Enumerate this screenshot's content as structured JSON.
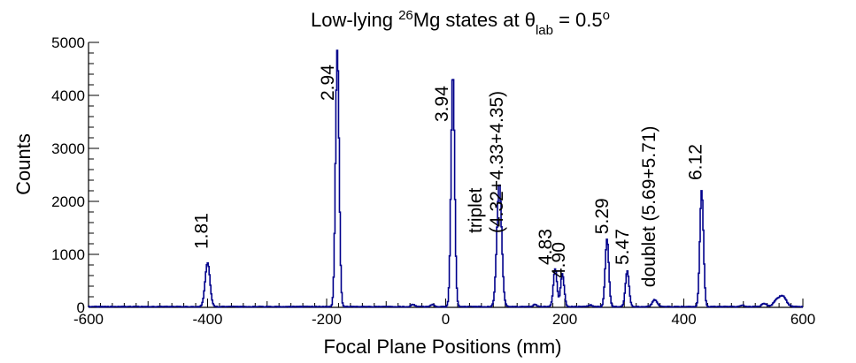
{
  "chart_data": {
    "type": "line",
    "title": {
      "prefix": "Low-lying ",
      "superscript": "26",
      "nucleus": "Mg states at θ",
      "subscript": "lab",
      "equals": " = 0.5",
      "degree": "o"
    },
    "xlabel": "Focal Plane Positions (mm)",
    "ylabel": "Counts",
    "xlim": [
      -600,
      600
    ],
    "ylim": [
      0,
      5000
    ],
    "xticks": [
      "-600",
      "-400",
      "-200",
      "0",
      "200",
      "400",
      "600"
    ],
    "yticks": [
      "0",
      "1000",
      "2000",
      "3000",
      "4000",
      "5000"
    ],
    "series_color": "#00008b",
    "peaks": [
      {
        "x": -400,
        "height": 830,
        "width": 4
      },
      {
        "x": -182,
        "height": 4850,
        "width": 3
      },
      {
        "x": 12,
        "height": 4420,
        "width": 3
      },
      {
        "x": 90,
        "height": 2330,
        "width": 4
      },
      {
        "x": 184,
        "height": 720,
        "width": 3
      },
      {
        "x": 196,
        "height": 620,
        "width": 3
      },
      {
        "x": 271,
        "height": 1280,
        "width": 3
      },
      {
        "x": 305,
        "height": 680,
        "width": 3
      },
      {
        "x": 351,
        "height": 130,
        "width": 4
      },
      {
        "x": 430,
        "height": 2200,
        "width": 3
      },
      {
        "x": 498,
        "height": 30,
        "width": 3
      },
      {
        "x": 535,
        "height": 60,
        "width": 4
      },
      {
        "x": 555,
        "height": 100,
        "width": 5
      },
      {
        "x": 566,
        "height": 200,
        "width": 6
      },
      {
        "x": -55,
        "height": 40,
        "width": 3
      },
      {
        "x": -22,
        "height": 40,
        "width": 3
      },
      {
        "x": 150,
        "height": 40,
        "width": 3
      },
      {
        "x": 243,
        "height": 30,
        "width": 3
      }
    ],
    "annotations": [
      {
        "lines": [
          "1.81"
        ],
        "x": -400,
        "y": 1100
      },
      {
        "lines": [
          "2.94"
        ],
        "x": -188,
        "y": 3900
      },
      {
        "lines": [
          "3.94"
        ],
        "x": 4,
        "y": 3500
      },
      {
        "lines": [
          "triplet",
          "(4.32+4.33+4.35)"
        ],
        "x": 60,
        "y": 1400
      },
      {
        "lines": [
          "4.83"
        ],
        "x": 178,
        "y": 800
      },
      {
        "lines": [
          "4.90"
        ],
        "x": 200,
        "y": 550
      },
      {
        "lines": [
          "5.29"
        ],
        "x": 273,
        "y": 1380
      },
      {
        "lines": [
          "5.47"
        ],
        "x": 307,
        "y": 800
      },
      {
        "lines": [
          "doublet (5.69+5.71)"
        ],
        "x": 352,
        "y": 380
      },
      {
        "lines": [
          "6.12"
        ],
        "x": 430,
        "y": 2400
      }
    ]
  }
}
